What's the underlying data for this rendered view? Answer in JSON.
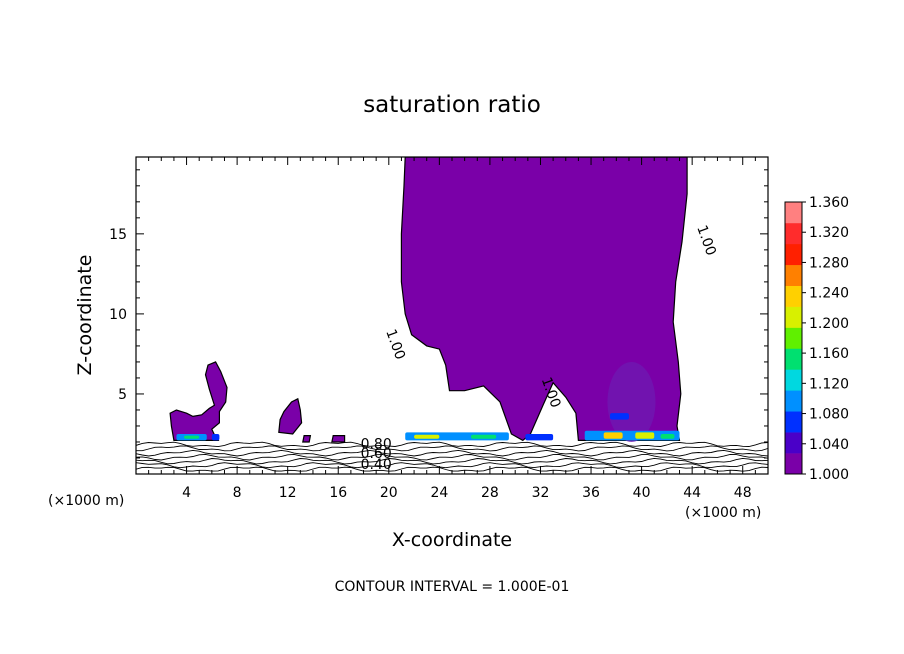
{
  "chart_data": {
    "type": "heatmap",
    "title": "saturation ratio",
    "xlabel": "X-coordinate",
    "ylabel": "Z-coordinate",
    "x_unit_left": "(×1000 m)",
    "x_unit_right": "(×1000 m)",
    "footer": "CONTOUR INTERVAL = 1.000E-01",
    "xlim": [
      0,
      50
    ],
    "ylim": [
      0,
      19.8
    ],
    "xticks": [
      4,
      8,
      12,
      16,
      20,
      24,
      28,
      32,
      36,
      40,
      44,
      48
    ],
    "yticks": [
      5,
      10,
      15
    ],
    "colorbar": {
      "min": 1.0,
      "max": 1.36,
      "labels": [
        "1.360",
        "1.320",
        "1.280",
        "1.240",
        "1.200",
        "1.160",
        "1.120",
        "1.080",
        "1.040",
        "1.000"
      ],
      "colors": [
        "#7a00a8",
        "#4a00c8",
        "#0030ff",
        "#0090ff",
        "#00d8e0",
        "#00e070",
        "#60f000",
        "#d8f000",
        "#ffd000",
        "#ff8000",
        "#ff2000",
        "#ff2c2c",
        "#ff8080"
      ]
    },
    "contour_labels": [
      {
        "text": "1.00",
        "x": 20.2,
        "y": 8.0
      },
      {
        "text": "1.00",
        "x": 32.5,
        "y": 5.0
      },
      {
        "text": "1.00",
        "x": 44.8,
        "y": 14.5
      },
      {
        "text": "0.80",
        "x": 19.0,
        "y": 1.6
      },
      {
        "text": "0.60",
        "x": 19.0,
        "y": 1.0
      },
      {
        "text": "0.40",
        "x": 19.0,
        "y": 0.3
      }
    ],
    "regions": [
      {
        "name": "large-cloud",
        "value": 1.0,
        "outline": [
          [
            21.3,
            19.8
          ],
          [
            43.6,
            19.8
          ],
          [
            43.6,
            17.5
          ],
          [
            43.2,
            14.5
          ],
          [
            42.7,
            12
          ],
          [
            42.5,
            9.5
          ],
          [
            42.9,
            7
          ],
          [
            43.1,
            5
          ],
          [
            42.8,
            3
          ],
          [
            43.0,
            2.1
          ],
          [
            35.0,
            2.1
          ],
          [
            34.8,
            3.8
          ],
          [
            34.0,
            4.8
          ],
          [
            33.0,
            5.7
          ],
          [
            32.2,
            4.3
          ],
          [
            31.2,
            2.5
          ],
          [
            30.6,
            2.1
          ],
          [
            29.7,
            2.5
          ],
          [
            28.8,
            4.5
          ],
          [
            27.5,
            5.5
          ],
          [
            26.0,
            5.2
          ],
          [
            24.8,
            5.2
          ],
          [
            24.5,
            6.8
          ],
          [
            24.0,
            7.8
          ],
          [
            23.0,
            8.0
          ],
          [
            21.8,
            8.7
          ],
          [
            21.3,
            10
          ],
          [
            21.0,
            12
          ],
          [
            21.0,
            15
          ],
          [
            21.2,
            18
          ]
        ]
      },
      {
        "name": "left-cloud",
        "value": 1.0,
        "outline": [
          [
            3.0,
            2.1
          ],
          [
            2.8,
            3.0
          ],
          [
            2.7,
            3.8
          ],
          [
            3.2,
            4.0
          ],
          [
            4.0,
            3.8
          ],
          [
            4.5,
            3.6
          ],
          [
            5.2,
            3.7
          ],
          [
            5.8,
            4.1
          ],
          [
            6.2,
            4.3
          ],
          [
            5.8,
            5.3
          ],
          [
            5.5,
            6.2
          ],
          [
            5.7,
            6.8
          ],
          [
            6.3,
            7.0
          ],
          [
            6.7,
            6.4
          ],
          [
            7.2,
            5.4
          ],
          [
            7.1,
            4.5
          ],
          [
            6.6,
            3.9
          ],
          [
            6.6,
            3.2
          ],
          [
            6.0,
            2.8
          ],
          [
            6.3,
            2.3
          ],
          [
            6.5,
            2.1
          ]
        ]
      },
      {
        "name": "small-cloud-1",
        "value": 1.0,
        "outline": [
          [
            11.3,
            2.6
          ],
          [
            11.4,
            3.4
          ],
          [
            11.7,
            3.9
          ],
          [
            12.3,
            4.5
          ],
          [
            12.8,
            4.7
          ],
          [
            13.0,
            4.0
          ],
          [
            13.1,
            3.2
          ],
          [
            12.4,
            2.5
          ]
        ]
      },
      {
        "name": "small-cloud-2",
        "value": 1.0,
        "outline": [
          [
            13.2,
            2.0
          ],
          [
            13.3,
            2.4
          ],
          [
            13.8,
            2.4
          ],
          [
            13.7,
            2.0
          ]
        ]
      },
      {
        "name": "small-cloud-3",
        "value": 1.0,
        "outline": [
          [
            15.5,
            2.0
          ],
          [
            15.6,
            2.4
          ],
          [
            16.5,
            2.4
          ],
          [
            16.5,
            2.0
          ]
        ]
      }
    ],
    "hotspots": [
      {
        "x0": 3.2,
        "x1": 5.6,
        "y0": 2.1,
        "y1": 2.5,
        "value": 1.1
      },
      {
        "x0": 3.8,
        "x1": 5.0,
        "y0": 2.2,
        "y1": 2.4,
        "value": 1.16
      },
      {
        "x0": 6.0,
        "x1": 6.6,
        "y0": 2.1,
        "y1": 2.5,
        "value": 1.08
      },
      {
        "x0": 21.3,
        "x1": 29.5,
        "y0": 2.1,
        "y1": 2.6,
        "value": 1.1
      },
      {
        "x0": 22.0,
        "x1": 24.0,
        "y0": 2.2,
        "y1": 2.45,
        "value": 1.2
      },
      {
        "x0": 26.5,
        "x1": 28.5,
        "y0": 2.2,
        "y1": 2.45,
        "value": 1.16
      },
      {
        "x0": 30.8,
        "x1": 33.0,
        "y0": 2.1,
        "y1": 2.5,
        "value": 1.08
      },
      {
        "x0": 35.5,
        "x1": 43.0,
        "y0": 2.1,
        "y1": 2.7,
        "value": 1.1
      },
      {
        "x0": 37.0,
        "x1": 38.5,
        "y0": 2.2,
        "y1": 2.6,
        "value": 1.24
      },
      {
        "x0": 39.5,
        "x1": 41.0,
        "y0": 2.2,
        "y1": 2.6,
        "value": 1.2
      },
      {
        "x0": 41.5,
        "x1": 42.6,
        "y0": 2.2,
        "y1": 2.5,
        "value": 1.16
      },
      {
        "x0": 37.5,
        "x1": 39.0,
        "y0": 3.4,
        "y1": 3.8,
        "value": 1.08
      }
    ],
    "surface_contours": [
      0.3,
      0.55,
      0.8,
      1.05,
      1.3,
      1.6,
      1.85
    ]
  }
}
